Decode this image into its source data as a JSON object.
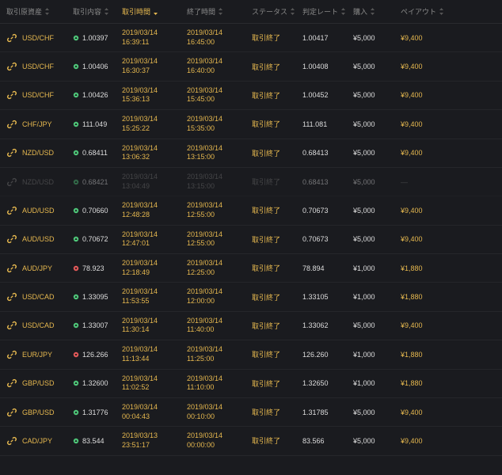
{
  "colors": {
    "background": "#1a1b1f",
    "text": "#aaa",
    "highlight": "#e6b84f",
    "up": "#4fc97a",
    "down": "#e65a5a",
    "dim": "#777",
    "border": "#25262a"
  },
  "headers": {
    "asset": "取引原資産",
    "content": "取引内容",
    "trade_time": "取引時間",
    "end_time": "終了時間",
    "status": "ステータス",
    "rate": "判定レート",
    "buy": "購入",
    "payout": "ペイアウト"
  },
  "rows": [
    {
      "asset": "USD/CHF",
      "dir": "up",
      "price": "1.00397",
      "td": "2019/03/14",
      "tt": "16:39:11",
      "ed": "2019/03/14",
      "et": "16:45:00",
      "status": "取引終了",
      "rate": "1.00417",
      "buy": "¥5,000",
      "payout": "¥9,400",
      "dim": false
    },
    {
      "asset": "USD/CHF",
      "dir": "up",
      "price": "1.00406",
      "td": "2019/03/14",
      "tt": "16:30:37",
      "ed": "2019/03/14",
      "et": "16:40:00",
      "status": "取引終了",
      "rate": "1.00408",
      "buy": "¥5,000",
      "payout": "¥9,400",
      "dim": false
    },
    {
      "asset": "USD/CHF",
      "dir": "up",
      "price": "1.00426",
      "td": "2019/03/14",
      "tt": "15:36:13",
      "ed": "2019/03/14",
      "et": "15:45:00",
      "status": "取引終了",
      "rate": "1.00452",
      "buy": "¥5,000",
      "payout": "¥9,400",
      "dim": false
    },
    {
      "asset": "CHF/JPY",
      "dir": "up",
      "price": "111.049",
      "td": "2019/03/14",
      "tt": "15:25:22",
      "ed": "2019/03/14",
      "et": "15:35:00",
      "status": "取引終了",
      "rate": "111.081",
      "buy": "¥5,000",
      "payout": "¥9,400",
      "dim": false
    },
    {
      "asset": "NZD/USD",
      "dir": "up",
      "price": "0.68411",
      "td": "2019/03/14",
      "tt": "13:06:32",
      "ed": "2019/03/14",
      "et": "13:15:00",
      "status": "取引終了",
      "rate": "0.68413",
      "buy": "¥5,000",
      "payout": "¥9,400",
      "dim": false
    },
    {
      "asset": "NZD/USD",
      "dir": "up",
      "price": "0.68421",
      "td": "2019/03/14",
      "tt": "13:04:49",
      "ed": "2019/03/14",
      "et": "13:15:00",
      "status": "取引終了",
      "rate": "0.68413",
      "buy": "¥5,000",
      "payout": "—",
      "dim": true
    },
    {
      "asset": "AUD/USD",
      "dir": "up",
      "price": "0.70660",
      "td": "2019/03/14",
      "tt": "12:48:28",
      "ed": "2019/03/14",
      "et": "12:55:00",
      "status": "取引終了",
      "rate": "0.70673",
      "buy": "¥5,000",
      "payout": "¥9,400",
      "dim": false
    },
    {
      "asset": "AUD/USD",
      "dir": "up",
      "price": "0.70672",
      "td": "2019/03/14",
      "tt": "12:47:01",
      "ed": "2019/03/14",
      "et": "12:55:00",
      "status": "取引終了",
      "rate": "0.70673",
      "buy": "¥5,000",
      "payout": "¥9,400",
      "dim": false
    },
    {
      "asset": "AUD/JPY",
      "dir": "down",
      "price": "78.923",
      "td": "2019/03/14",
      "tt": "12:18:49",
      "ed": "2019/03/14",
      "et": "12:25:00",
      "status": "取引終了",
      "rate": "78.894",
      "buy": "¥1,000",
      "payout": "¥1,880",
      "dim": false
    },
    {
      "asset": "USD/CAD",
      "dir": "up",
      "price": "1.33095",
      "td": "2019/03/14",
      "tt": "11:53:55",
      "ed": "2019/03/14",
      "et": "12:00:00",
      "status": "取引終了",
      "rate": "1.33105",
      "buy": "¥1,000",
      "payout": "¥1,880",
      "dim": false
    },
    {
      "asset": "USD/CAD",
      "dir": "up",
      "price": "1.33007",
      "td": "2019/03/14",
      "tt": "11:30:14",
      "ed": "2019/03/14",
      "et": "11:40:00",
      "status": "取引終了",
      "rate": "1.33062",
      "buy": "¥5,000",
      "payout": "¥9,400",
      "dim": false
    },
    {
      "asset": "EUR/JPY",
      "dir": "down",
      "price": "126.266",
      "td": "2019/03/14",
      "tt": "11:13:44",
      "ed": "2019/03/14",
      "et": "11:25:00",
      "status": "取引終了",
      "rate": "126.260",
      "buy": "¥1,000",
      "payout": "¥1,880",
      "dim": false
    },
    {
      "asset": "GBP/USD",
      "dir": "up",
      "price": "1.32600",
      "td": "2019/03/14",
      "tt": "11:02:52",
      "ed": "2019/03/14",
      "et": "11:10:00",
      "status": "取引終了",
      "rate": "1.32650",
      "buy": "¥1,000",
      "payout": "¥1,880",
      "dim": false
    },
    {
      "asset": "GBP/USD",
      "dir": "up",
      "price": "1.31776",
      "td": "2019/03/14",
      "tt": "00:04:43",
      "ed": "2019/03/14",
      "et": "00:10:00",
      "status": "取引終了",
      "rate": "1.31785",
      "buy": "¥5,000",
      "payout": "¥9,400",
      "dim": false
    },
    {
      "asset": "CAD/JPY",
      "dir": "up",
      "price": "83.544",
      "td": "2019/03/13",
      "tt": "23:51:17",
      "ed": "2019/03/14",
      "et": "00:00:00",
      "status": "取引終了",
      "rate": "83.566",
      "buy": "¥5,000",
      "payout": "¥9,400",
      "dim": false
    }
  ]
}
